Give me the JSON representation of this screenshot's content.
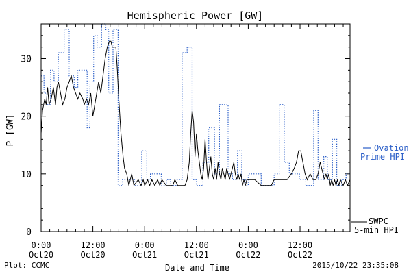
{
  "chart_data": {
    "type": "line",
    "title": "Hemispheric Power [GW]",
    "xlabel": "Date and Time",
    "ylabel": "P [GW]",
    "xlim": [
      "2015-10-20 00:00",
      "2015-10-22 23:35"
    ],
    "ylim": [
      0,
      36
    ],
    "grid": false,
    "legend_position": "right",
    "y_ticks": [
      0,
      10,
      20,
      30
    ],
    "x_ticks": [
      {
        "time": "2015-10-20 00:00",
        "label1": "0:00",
        "label2": "Oct20"
      },
      {
        "time": "2015-10-20 12:00",
        "label1": "12:00",
        "label2": "Oct20"
      },
      {
        "time": "2015-10-21 00:00",
        "label1": "0:00",
        "label2": "Oct21"
      },
      {
        "time": "2015-10-21 12:00",
        "label1": "12:00",
        "label2": "Oct21"
      },
      {
        "time": "2015-10-22 00:00",
        "label1": "0:00",
        "label2": "Oct22"
      },
      {
        "time": "2015-10-22 12:00",
        "label1": "12:00",
        "label2": "Oct22"
      }
    ],
    "series": [
      {
        "name": "Ovation Prime HPI",
        "legend_lines": [
          "Ovation",
          "Prime HPI"
        ],
        "color": "#2a5ec8",
        "style": "dotted",
        "points": [
          [
            "2015-10-20 00:00",
            27
          ],
          [
            "2015-10-20 00:40",
            24
          ],
          [
            "2015-10-20 01:20",
            22
          ],
          [
            "2015-10-20 02:10",
            28
          ],
          [
            "2015-10-20 03:00",
            26
          ],
          [
            "2015-10-20 04:00",
            31
          ],
          [
            "2015-10-20 05:20",
            35
          ],
          [
            "2015-10-20 06:30",
            27
          ],
          [
            "2015-10-20 07:40",
            25
          ],
          [
            "2015-10-20 08:30",
            28
          ],
          [
            "2015-10-20 10:40",
            18
          ],
          [
            "2015-10-20 11:20",
            26
          ],
          [
            "2015-10-20 12:10",
            34
          ],
          [
            "2015-10-20 13:00",
            32
          ],
          [
            "2015-10-20 14:00",
            36
          ],
          [
            "2015-10-20 15:00",
            35
          ],
          [
            "2015-10-20 15:40",
            24
          ],
          [
            "2015-10-20 16:40",
            35
          ],
          [
            "2015-10-20 17:50",
            8
          ],
          [
            "2015-10-20 18:50",
            9
          ],
          [
            "2015-10-20 21:40",
            8
          ],
          [
            "2015-10-20 23:20",
            14
          ],
          [
            "2015-10-21 00:30",
            9
          ],
          [
            "2015-10-21 01:20",
            10
          ],
          [
            "2015-10-21 03:50",
            8
          ],
          [
            "2015-10-21 05:00",
            9
          ],
          [
            "2015-10-21 06:00",
            8
          ],
          [
            "2015-10-21 07:30",
            9
          ],
          [
            "2015-10-21 08:40",
            31
          ],
          [
            "2015-10-21 09:50",
            32
          ],
          [
            "2015-10-21 11:00",
            9
          ],
          [
            "2015-10-21 12:00",
            8
          ],
          [
            "2015-10-21 13:30",
            12
          ],
          [
            "2015-10-21 14:50",
            18
          ],
          [
            "2015-10-21 16:10",
            10
          ],
          [
            "2015-10-21 17:20",
            22
          ],
          [
            "2015-10-21 19:20",
            10
          ],
          [
            "2015-10-21 20:20",
            9
          ],
          [
            "2015-10-21 21:30",
            14
          ],
          [
            "2015-10-21 22:30",
            9
          ],
          [
            "2015-10-21 23:20",
            8
          ],
          [
            "2015-10-22 00:00",
            10
          ],
          [
            "2015-10-22 03:00",
            8
          ],
          [
            "2015-10-22 06:00",
            10
          ],
          [
            "2015-10-22 07:10",
            22
          ],
          [
            "2015-10-22 08:20",
            12
          ],
          [
            "2015-10-22 09:30",
            10
          ],
          [
            "2015-10-22 11:50",
            9
          ],
          [
            "2015-10-22 13:20",
            8
          ],
          [
            "2015-10-22 15:10",
            21
          ],
          [
            "2015-10-22 16:10",
            9
          ],
          [
            "2015-10-22 17:30",
            13
          ],
          [
            "2015-10-22 18:20",
            9
          ],
          [
            "2015-10-22 19:30",
            16
          ],
          [
            "2015-10-22 20:30",
            8
          ],
          [
            "2015-10-22 21:40",
            9
          ],
          [
            "2015-10-22 22:40",
            10
          ],
          [
            "2015-10-22 23:35",
            10
          ]
        ]
      },
      {
        "name": "SWPC 5-min HPI",
        "legend_lines": [
          "SWPC",
          "5-min HPI"
        ],
        "color": "#000000",
        "style": "solid",
        "points": [
          [
            "2015-10-20 00:00",
            17
          ],
          [
            "2015-10-20 00:20",
            21
          ],
          [
            "2015-10-20 00:50",
            23
          ],
          [
            "2015-10-20 01:10",
            22
          ],
          [
            "2015-10-20 01:30",
            25
          ],
          [
            "2015-10-20 01:50",
            22
          ],
          [
            "2015-10-20 02:20",
            23
          ],
          [
            "2015-10-20 02:50",
            25
          ],
          [
            "2015-10-20 03:20",
            22
          ],
          [
            "2015-10-20 03:40",
            25
          ],
          [
            "2015-10-20 04:00",
            26
          ],
          [
            "2015-10-20 04:30",
            24
          ],
          [
            "2015-10-20 05:00",
            22
          ],
          [
            "2015-10-20 05:30",
            23
          ],
          [
            "2015-10-20 06:00",
            25
          ],
          [
            "2015-10-20 06:30",
            26
          ],
          [
            "2015-10-20 07:00",
            27
          ],
          [
            "2015-10-20 07:30",
            25
          ],
          [
            "2015-10-20 08:00",
            24
          ],
          [
            "2015-10-20 08:30",
            23
          ],
          [
            "2015-10-20 09:00",
            24
          ],
          [
            "2015-10-20 09:40",
            23
          ],
          [
            "2015-10-20 10:00",
            22
          ],
          [
            "2015-10-20 10:30",
            23
          ],
          [
            "2015-10-20 11:00",
            22
          ],
          [
            "2015-10-20 11:30",
            24
          ],
          [
            "2015-10-20 12:00",
            20
          ],
          [
            "2015-10-20 12:40",
            23
          ],
          [
            "2015-10-20 13:20",
            26
          ],
          [
            "2015-10-20 13:50",
            24
          ],
          [
            "2015-10-20 14:20",
            27
          ],
          [
            "2015-10-20 14:50",
            30
          ],
          [
            "2015-10-20 15:20",
            32
          ],
          [
            "2015-10-20 15:50",
            33
          ],
          [
            "2015-10-20 16:10",
            33
          ],
          [
            "2015-10-20 16:30",
            32
          ],
          [
            "2015-10-20 17:20",
            32
          ],
          [
            "2015-10-20 17:40",
            28
          ],
          [
            "2015-10-20 18:00",
            23
          ],
          [
            "2015-10-20 18:30",
            17
          ],
          [
            "2015-10-20 19:00",
            13
          ],
          [
            "2015-10-20 19:20",
            11
          ],
          [
            "2015-10-20 19:50",
            10
          ],
          [
            "2015-10-20 20:20",
            8
          ],
          [
            "2015-10-20 20:40",
            9
          ],
          [
            "2015-10-20 21:00",
            10
          ],
          [
            "2015-10-20 21:30",
            8
          ],
          [
            "2015-10-20 22:30",
            9
          ],
          [
            "2015-10-20 23:10",
            8
          ],
          [
            "2015-10-20 23:40",
            9
          ],
          [
            "2015-10-21 00:00",
            8
          ],
          [
            "2015-10-21 00:40",
            9
          ],
          [
            "2015-10-21 01:10",
            8
          ],
          [
            "2015-10-21 01:40",
            9
          ],
          [
            "2015-10-21 02:20",
            8
          ],
          [
            "2015-10-21 03:00",
            9
          ],
          [
            "2015-10-21 03:30",
            8
          ],
          [
            "2015-10-21 04:00",
            9
          ],
          [
            "2015-10-21 05:00",
            8
          ],
          [
            "2015-10-21 06:30",
            8
          ],
          [
            "2015-10-21 07:00",
            9
          ],
          [
            "2015-10-21 07:40",
            8
          ],
          [
            "2015-10-21 08:40",
            8
          ],
          [
            "2015-10-21 09:20",
            8
          ],
          [
            "2015-10-21 09:50",
            9
          ],
          [
            "2015-10-21 10:20",
            12
          ],
          [
            "2015-10-21 10:40",
            17
          ],
          [
            "2015-10-21 11:00",
            21
          ],
          [
            "2015-10-21 11:20",
            19
          ],
          [
            "2015-10-21 11:40",
            13
          ],
          [
            "2015-10-21 12:00",
            17
          ],
          [
            "2015-10-21 12:20",
            14
          ],
          [
            "2015-10-21 12:40",
            12
          ],
          [
            "2015-10-21 13:00",
            10
          ],
          [
            "2015-10-21 13:20",
            9
          ],
          [
            "2015-10-21 13:40",
            11
          ],
          [
            "2015-10-21 14:00",
            16
          ],
          [
            "2015-10-21 14:20",
            12
          ],
          [
            "2015-10-21 14:40",
            9
          ],
          [
            "2015-10-21 15:00",
            11
          ],
          [
            "2015-10-21 15:20",
            13
          ],
          [
            "2015-10-21 15:40",
            10
          ],
          [
            "2015-10-21 16:00",
            9
          ],
          [
            "2015-10-21 16:20",
            11
          ],
          [
            "2015-10-21 16:40",
            9
          ],
          [
            "2015-10-21 17:00",
            12
          ],
          [
            "2015-10-21 17:20",
            10
          ],
          [
            "2015-10-21 17:40",
            9
          ],
          [
            "2015-10-21 18:00",
            11
          ],
          [
            "2015-10-21 18:20",
            10
          ],
          [
            "2015-10-21 18:40",
            9
          ],
          [
            "2015-10-21 19:00",
            11
          ],
          [
            "2015-10-21 19:20",
            10
          ],
          [
            "2015-10-21 19:40",
            9
          ],
          [
            "2015-10-21 20:00",
            10
          ],
          [
            "2015-10-21 20:20",
            11
          ],
          [
            "2015-10-21 20:40",
            12
          ],
          [
            "2015-10-21 21:00",
            10
          ],
          [
            "2015-10-21 21:20",
            9
          ],
          [
            "2015-10-21 21:40",
            10
          ],
          [
            "2015-10-21 22:00",
            9
          ],
          [
            "2015-10-21 22:20",
            10
          ],
          [
            "2015-10-21 22:40",
            8
          ],
          [
            "2015-10-21 23:00",
            9
          ],
          [
            "2015-10-21 23:20",
            8
          ],
          [
            "2015-10-21 23:40",
            9
          ],
          [
            "2015-10-22 00:00",
            9
          ],
          [
            "2015-10-22 01:30",
            9
          ],
          [
            "2015-10-22 03:00",
            8
          ],
          [
            "2015-10-22 05:00",
            8
          ],
          [
            "2015-10-22 05:20",
            8
          ],
          [
            "2015-10-22 06:00",
            9
          ],
          [
            "2015-10-22 07:00",
            9
          ],
          [
            "2015-10-22 08:00",
            9
          ],
          [
            "2015-10-22 09:00",
            9
          ],
          [
            "2015-10-22 10:00",
            10
          ],
          [
            "2015-10-22 10:40",
            11
          ],
          [
            "2015-10-22 11:10",
            12
          ],
          [
            "2015-10-22 11:40",
            14
          ],
          [
            "2015-10-22 12:10",
            14
          ],
          [
            "2015-10-22 12:40",
            12
          ],
          [
            "2015-10-22 13:10",
            10
          ],
          [
            "2015-10-22 13:40",
            9
          ],
          [
            "2015-10-22 14:20",
            10
          ],
          [
            "2015-10-22 15:00",
            9
          ],
          [
            "2015-10-22 15:40",
            9
          ],
          [
            "2015-10-22 16:10",
            10
          ],
          [
            "2015-10-22 16:40",
            12
          ],
          [
            "2015-10-22 17:00",
            11
          ],
          [
            "2015-10-22 17:20",
            10
          ],
          [
            "2015-10-22 17:40",
            9
          ],
          [
            "2015-10-22 18:00",
            10
          ],
          [
            "2015-10-22 18:20",
            9
          ],
          [
            "2015-10-22 18:40",
            10
          ],
          [
            "2015-10-22 19:00",
            8
          ],
          [
            "2015-10-22 19:20",
            9
          ],
          [
            "2015-10-22 19:40",
            8
          ],
          [
            "2015-10-22 20:00",
            9
          ],
          [
            "2015-10-22 20:20",
            8
          ],
          [
            "2015-10-22 20:40",
            9
          ],
          [
            "2015-10-22 21:00",
            8
          ],
          [
            "2015-10-22 21:20",
            9
          ],
          [
            "2015-10-22 22:00",
            8
          ],
          [
            "2015-10-22 22:30",
            9
          ],
          [
            "2015-10-22 23:00",
            8
          ],
          [
            "2015-10-22 23:35",
            9
          ]
        ]
      }
    ]
  },
  "footer": {
    "plot_credit": "Plot: CCMC",
    "timestamp": "2015/10/22 23:35:08"
  }
}
